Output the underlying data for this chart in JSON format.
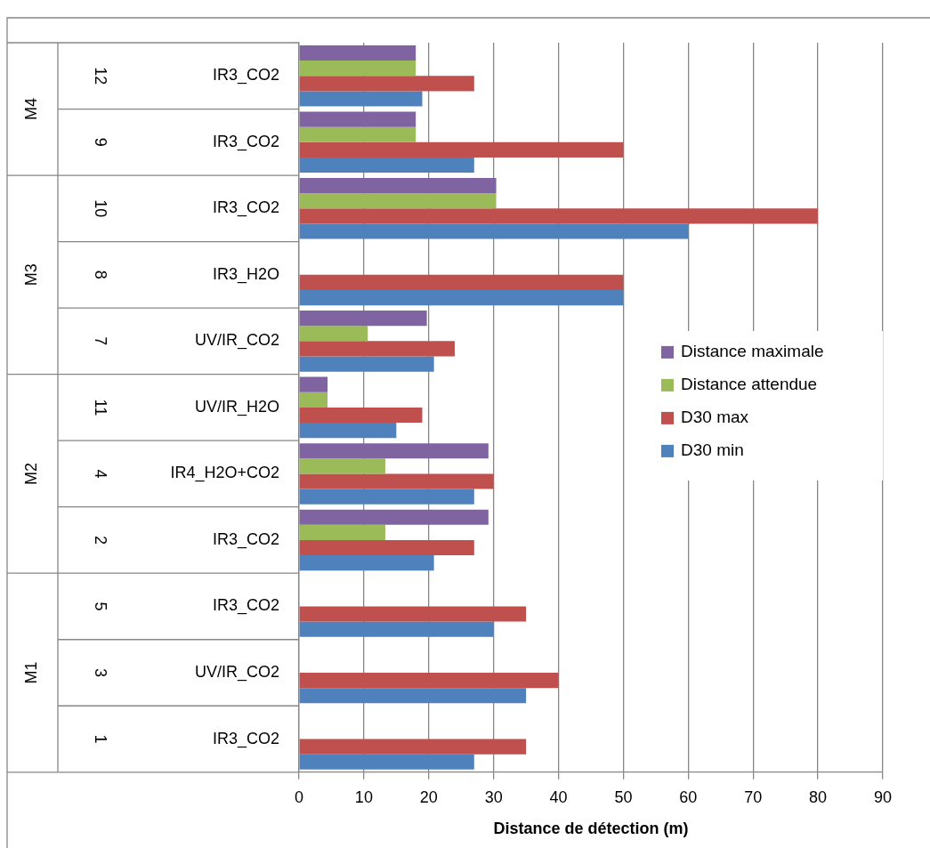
{
  "chart_data": {
    "type": "bar",
    "orientation": "horizontal",
    "xlabel": "Distance de détection (m)",
    "categories": [
      "IR3_CO2",
      "IR3_CO2",
      "IR3_CO2",
      "IR3_H2O",
      "UV/IR_CO2",
      "UV/IR_H2O",
      "IR4_H2O+CO2",
      "IR3_CO2",
      "IR3_CO2",
      "UV/IR_CO2",
      "IR3_CO2"
    ],
    "y2_categories": [
      "12",
      "9",
      "10",
      "8",
      "7",
      "11",
      "4",
      "2",
      "5",
      "3",
      "1"
    ],
    "series": [
      {
        "name": "Distance maximale",
        "color": "#8064a2",
        "values": [
          18,
          18,
          30.4,
          null,
          19.7,
          4.4,
          29.2,
          29.2,
          null,
          null,
          null
        ]
      },
      {
        "name": "Distance attendue",
        "color": "#9bbb59",
        "values": [
          18,
          18,
          30.4,
          null,
          10.6,
          4.4,
          13.3,
          13.3,
          null,
          null,
          null
        ]
      },
      {
        "name": "D30 max",
        "color": "#c0504d",
        "values": [
          27,
          50,
          80,
          50,
          24,
          19,
          30,
          27,
          35,
          40,
          35
        ]
      },
      {
        "name": "D30 min",
        "color": "#4f81bd",
        "values": [
          19,
          27,
          60,
          50,
          20.8,
          15,
          27,
          20.8,
          30,
          35,
          27
        ]
      }
    ],
    "annotations": [
      "M4",
      "M3",
      "M2",
      "M1"
    ],
    "xlim": [
      0,
      90
    ],
    "xticks": [
      0,
      10,
      20,
      30,
      40,
      50,
      60,
      70,
      80,
      90
    ],
    "grid": "x",
    "legend": "right"
  }
}
